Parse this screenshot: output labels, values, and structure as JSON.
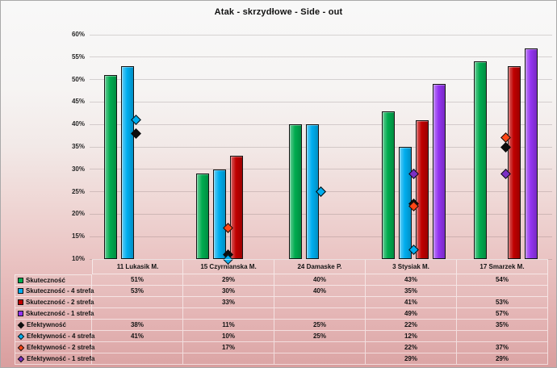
{
  "chart_data": {
    "type": "bar",
    "title": "Atak - skrzydłowe - Side - out",
    "categories": [
      "11 Lukasik M.",
      "15 Czyrnianska M.",
      "24 Damaske P.",
      "3 Stysiak M.",
      "17 Smarzek M."
    ],
    "y_axis": {
      "min": 10,
      "max": 60,
      "step": 5,
      "suffix": "%"
    },
    "gridlines": true,
    "legend_position": "data-table-left",
    "series": [
      {
        "name": "Skuteczność",
        "kind": "bar",
        "color": "#00AC4F",
        "values": [
          51,
          29,
          40,
          43,
          54
        ]
      },
      {
        "name": "Skuteczność - 4 strefa",
        "kind": "bar",
        "color": "#00AEEF",
        "values": [
          53,
          30,
          40,
          35,
          null
        ]
      },
      {
        "name": "Skuteczność - 2 strefa",
        "kind": "bar",
        "color": "#C00000",
        "values": [
          null,
          33,
          null,
          41,
          53
        ]
      },
      {
        "name": "Skuteczność - 1 strefa",
        "kind": "bar",
        "color": "#9333F0",
        "values": [
          null,
          null,
          null,
          49,
          57
        ]
      },
      {
        "name": "Efektywność",
        "kind": "marker",
        "color": "#0D0D0D",
        "values": [
          38,
          11,
          25,
          22.4,
          35
        ]
      },
      {
        "name": "Efektywność - 4 strefa",
        "kind": "marker",
        "color": "#00AEEF",
        "values": [
          41,
          10,
          25,
          12,
          null
        ]
      },
      {
        "name": "Efektywność - 2 strefa",
        "kind": "marker",
        "color": "#FF4616",
        "values": [
          null,
          17,
          null,
          21.8,
          37
        ]
      },
      {
        "name": "Efektywność - 1 strefa",
        "kind": "marker",
        "color": "#7B2FC4",
        "values": [
          null,
          null,
          null,
          29,
          29
        ]
      }
    ]
  }
}
